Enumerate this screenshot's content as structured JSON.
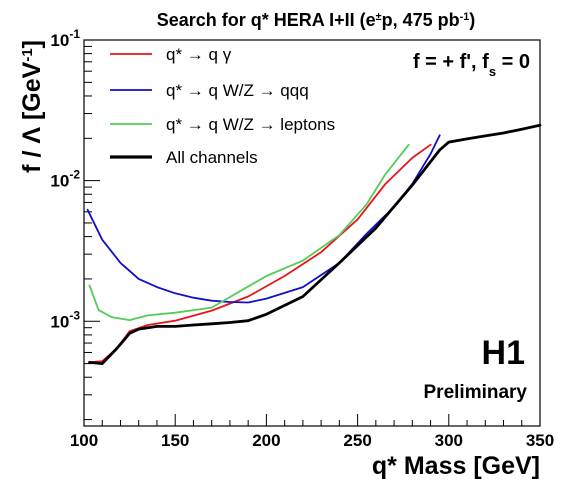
{
  "chart_data": {
    "type": "line",
    "title": "Search for q* HERA I+II (e±p, 475 pb-1)",
    "xlabel": "q* Mass [GeV]",
    "ylabel": "f / Λ [GeV-1]",
    "x_scale": "linear",
    "y_scale": "log",
    "xlim": [
      100,
      350
    ],
    "ylim": [
      0.00018,
      0.1
    ],
    "x_ticks": [
      100,
      150,
      200,
      250,
      300,
      350
    ],
    "y_ticks": [
      {
        "value": 0.001,
        "label": "10-3"
      },
      {
        "value": 0.01,
        "label": "10-2"
      },
      {
        "value": 0.1,
        "label": "10-1"
      }
    ],
    "grid": false,
    "legend_position": "top-left",
    "annotations": {
      "coupling": "f = + f', fs = 0",
      "experiment": "H1",
      "status": "Preliminary"
    },
    "series": [
      {
        "name": "q* → q γ",
        "color": "#e8141c",
        "x": [
          103,
          110,
          118,
          125,
          135,
          150,
          170,
          190,
          210,
          230,
          250,
          265,
          280,
          290
        ],
        "y": [
          0.00051,
          0.00052,
          0.00064,
          0.00085,
          0.00094,
          0.00101,
          0.00119,
          0.0015,
          0.0021,
          0.0031,
          0.0053,
          0.0094,
          0.0145,
          0.018
        ]
      },
      {
        "name": "q* → q W/Z → qqq",
        "color": "#1010c8",
        "x": [
          102,
          110,
          120,
          130,
          140,
          150,
          160,
          170,
          180,
          190,
          200,
          220,
          240,
          255,
          270,
          280,
          290,
          295
        ],
        "y": [
          0.0062,
          0.0038,
          0.0026,
          0.002,
          0.00175,
          0.00158,
          0.00147,
          0.0014,
          0.00137,
          0.00136,
          0.00145,
          0.00175,
          0.0026,
          0.0042,
          0.0065,
          0.0095,
          0.0155,
          0.021
        ]
      },
      {
        "name": "q* → q  W/Z → leptons",
        "color": "#55cc55",
        "x": [
          103,
          108,
          115,
          125,
          135,
          150,
          170,
          185,
          200,
          220,
          240,
          255,
          265,
          278
        ],
        "y": [
          0.0018,
          0.0012,
          0.00107,
          0.00102,
          0.0011,
          0.00115,
          0.00125,
          0.00162,
          0.0021,
          0.0027,
          0.0041,
          0.0068,
          0.011,
          0.018
        ]
      },
      {
        "name": "All channels",
        "color": "#000000",
        "x": [
          103,
          110,
          118,
          125,
          130,
          140,
          150,
          160,
          170,
          180,
          190,
          200,
          220,
          240,
          260,
          280,
          295,
          300,
          310,
          320,
          330,
          340,
          350
        ],
        "y": [
          0.00051,
          0.0005,
          0.00064,
          0.00082,
          0.00088,
          0.00092,
          0.00092,
          0.00094,
          0.00096,
          0.00098,
          0.00101,
          0.00112,
          0.0015,
          0.0026,
          0.0046,
          0.0093,
          0.0165,
          0.0188,
          0.0198,
          0.0208,
          0.0218,
          0.0232,
          0.0248
        ]
      }
    ]
  }
}
